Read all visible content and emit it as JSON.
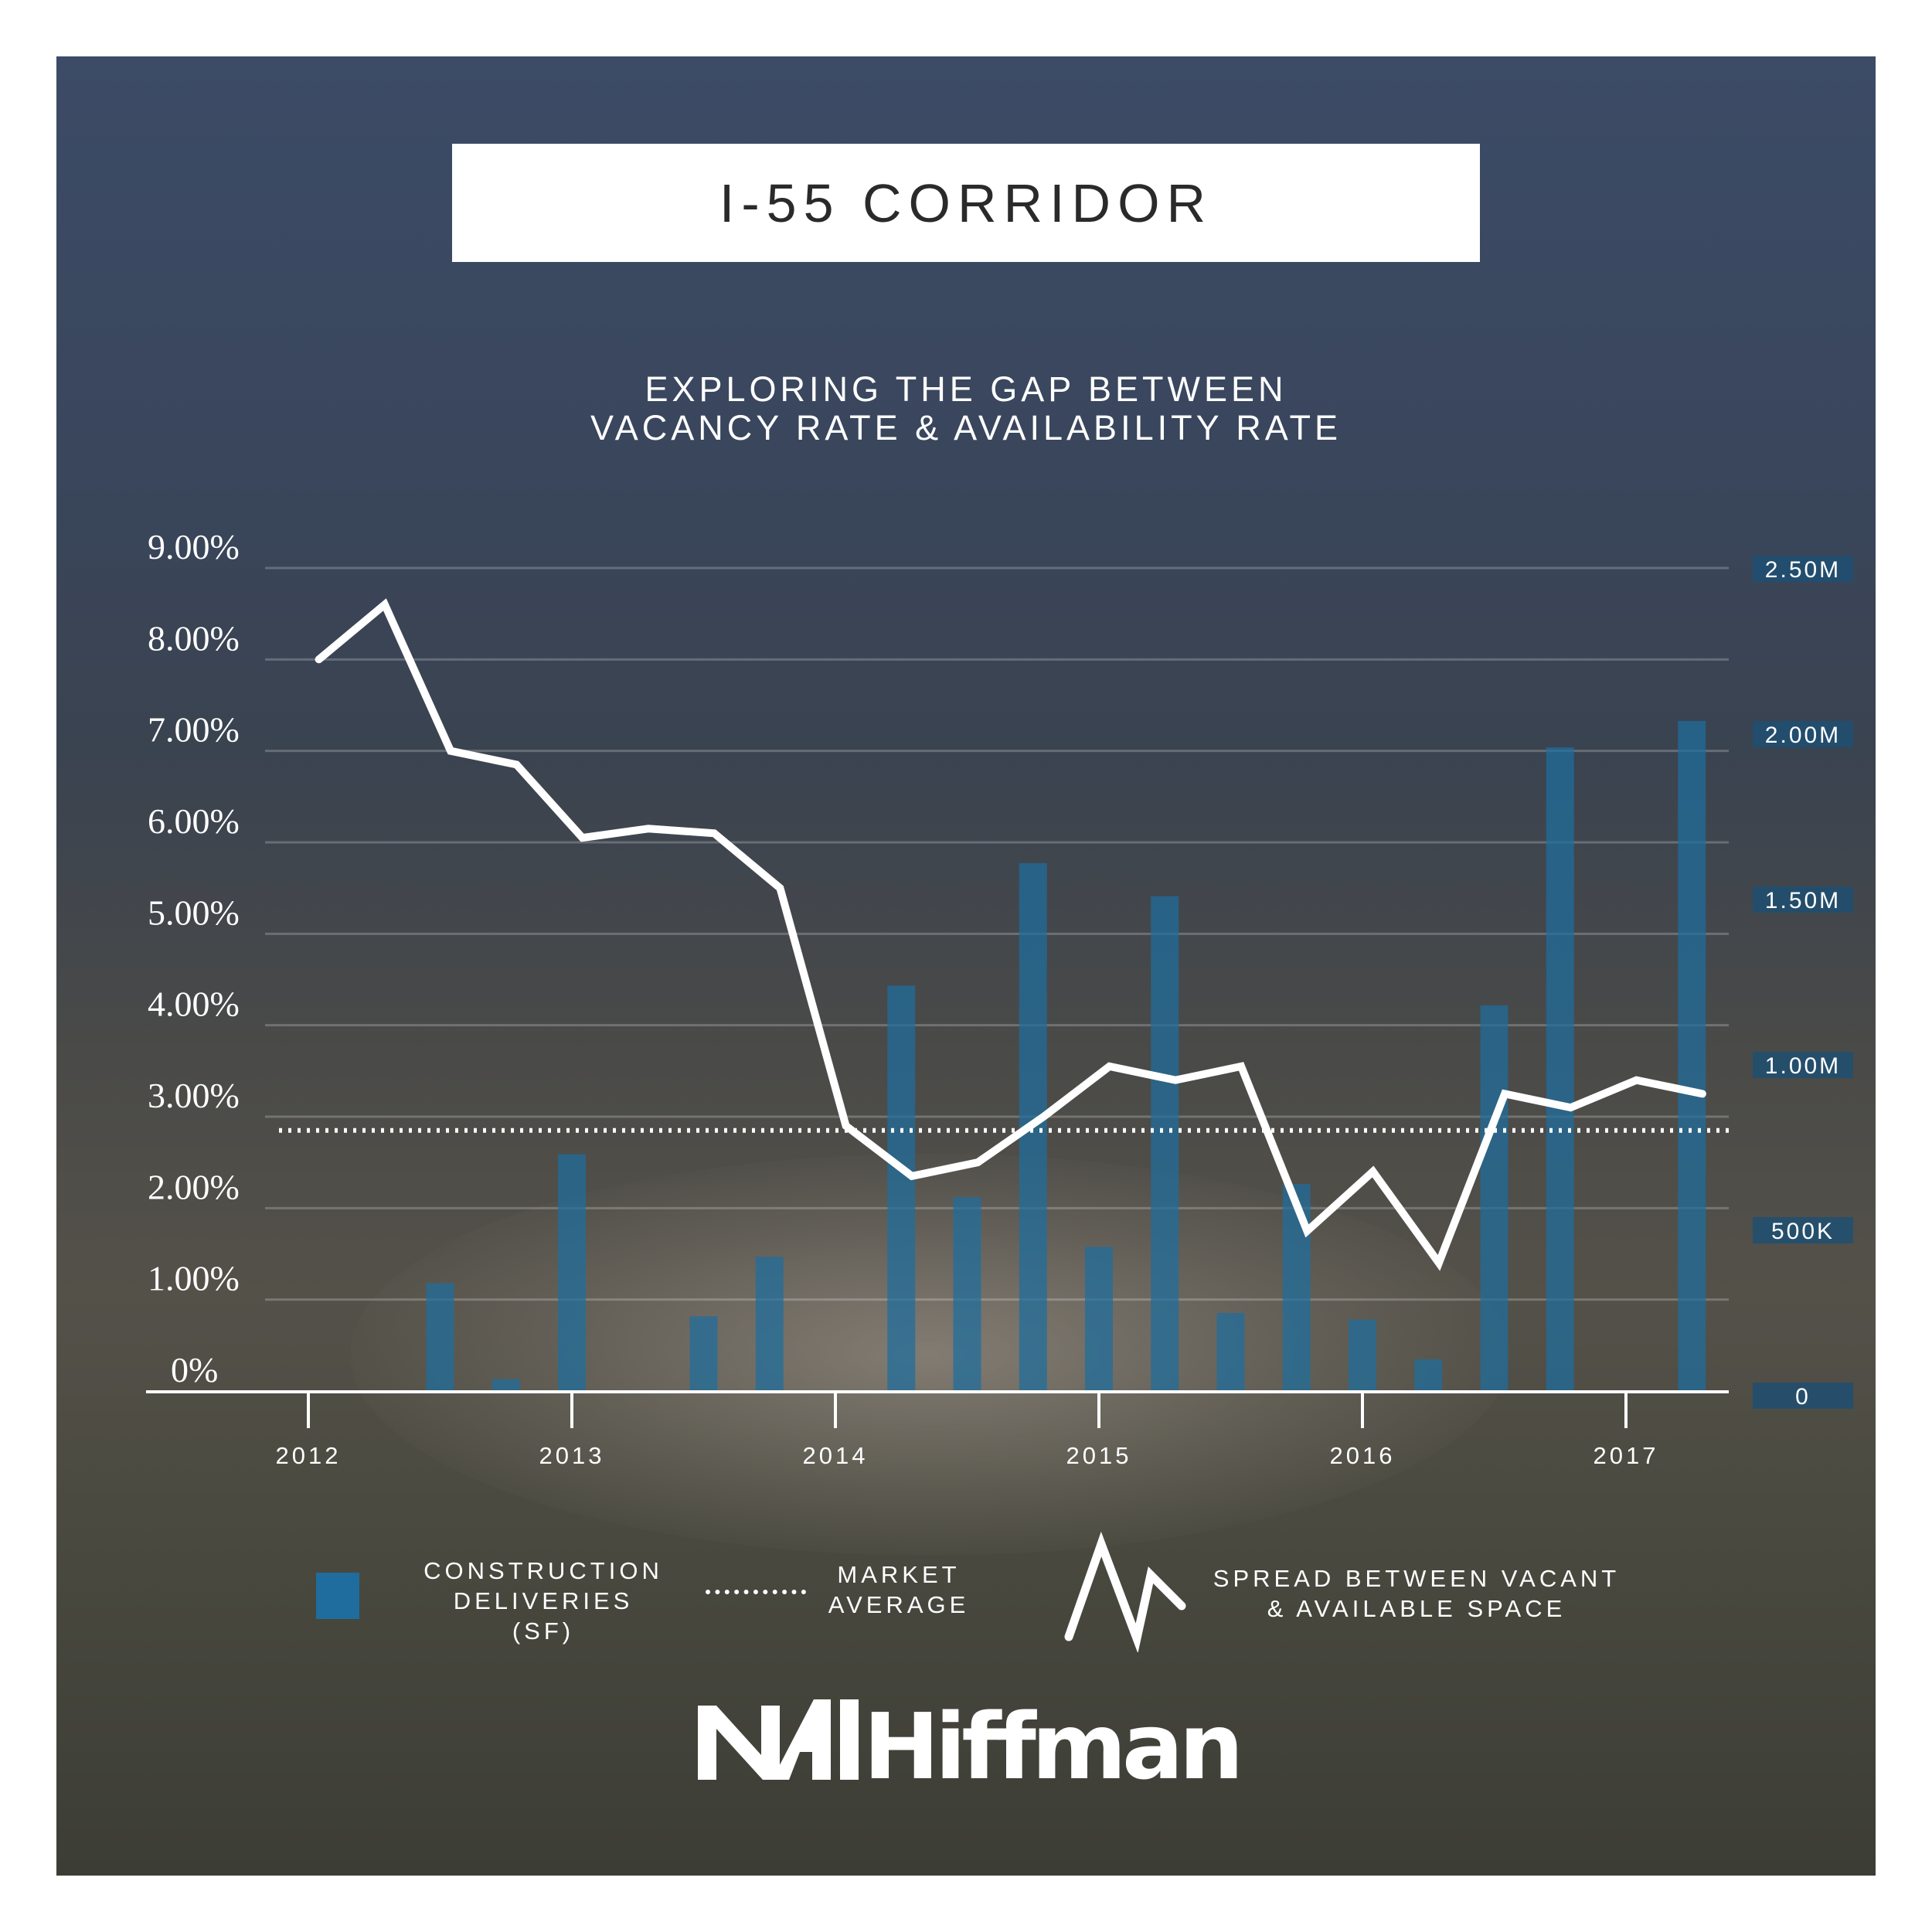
{
  "title": "I-55 CORRIDOR",
  "subtitle_lines": [
    "EXPLORING THE GAP BETWEEN",
    "VACANCY RATE & AVAILABILITY RATE"
  ],
  "legend": {
    "construction": "CONSTRUCTION\nDELIVERIES\n(SF)",
    "market": "MARKET\nAVERAGE",
    "spread": "SPREAD BETWEEN VACANT\n& AVAILABLE SPACE"
  },
  "logo": {
    "text": "NAIHiffman"
  },
  "colors": {
    "bar": "#1f6d9e",
    "axis_label_bg": "#1e4f72",
    "line": "#ffffff"
  },
  "chart_data": {
    "type": "bar+line",
    "x_ticks": [
      "2012",
      "2013",
      "2014",
      "2015",
      "2016",
      "2017"
    ],
    "y_left": {
      "ticks": [
        "0%",
        "1.00%",
        "2.00%",
        "3.00%",
        "4.00%",
        "5.00%",
        "6.00%",
        "7.00%",
        "8.00%",
        "9.00%"
      ],
      "range": [
        0,
        9
      ]
    },
    "y_right": {
      "ticks": [
        "0",
        "500K",
        "1.00M",
        "1.50M",
        "2.00M",
        "2.50M"
      ],
      "range": [
        0,
        2500000
      ]
    },
    "series": [
      {
        "name": "CONSTRUCTION DELIVERIES (SF)",
        "type": "bar",
        "axis": "right",
        "x": [
          2012.5,
          2012.75,
          2013.0,
          2013.5,
          2013.75,
          2014.25,
          2014.5,
          2014.75,
          2015.0,
          2015.25,
          2015.5,
          2015.75,
          2016.0,
          2016.25,
          2016.5,
          2016.75,
          2017.25
        ],
        "values": [
          340000,
          50000,
          730000,
          240000,
          420000,
          1240000,
          600000,
          1610000,
          450000,
          1510000,
          250000,
          640000,
          230000,
          110000,
          1180000,
          1960000,
          2040000
        ]
      },
      {
        "name": "SPREAD BETWEEN VACANT & AVAILABLE SPACE",
        "type": "line",
        "axis": "left",
        "x": [
          2012.04,
          2012.29,
          2012.54,
          2012.79,
          2013.04,
          2013.29,
          2013.54,
          2013.79,
          2014.04,
          2014.29,
          2014.54,
          2014.79,
          2015.04,
          2015.29,
          2015.54,
          2015.79,
          2016.04,
          2016.29,
          2016.54,
          2016.79,
          2017.04,
          2017.29
        ],
        "values": [
          8.0,
          8.6,
          7.0,
          6.85,
          6.05,
          6.15,
          6.1,
          5.5,
          2.9,
          2.35,
          2.5,
          3.0,
          3.55,
          3.4,
          3.55,
          1.75,
          2.4,
          1.4,
          3.25,
          3.1,
          3.4,
          3.25
        ]
      },
      {
        "name": "MARKET AVERAGE",
        "type": "reference",
        "axis": "left",
        "value": 2.85
      }
    ]
  }
}
